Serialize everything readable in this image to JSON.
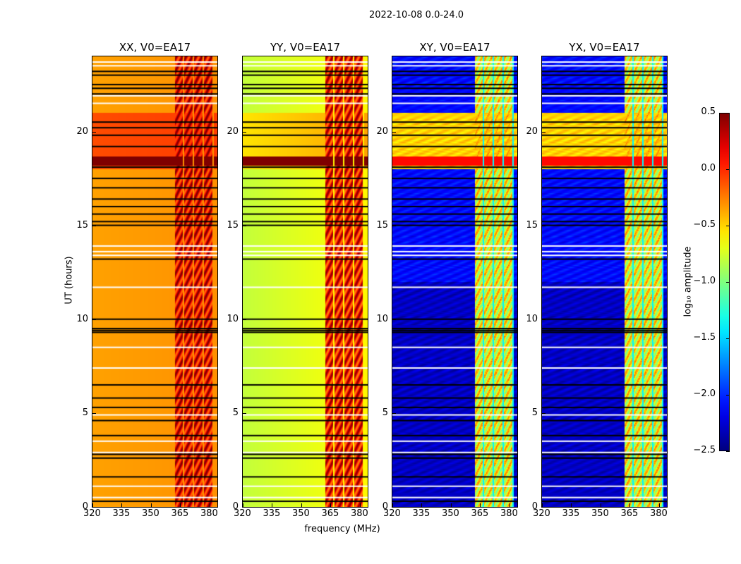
{
  "chart_data": {
    "type": "heatmap",
    "title": "2022-10-08 0.0-24.0",
    "xlabel": "frequency (MHz)",
    "ylabel": "UT (hours)",
    "xlim": [
      320,
      384
    ],
    "ylim": [
      0,
      24
    ],
    "xticks": [
      "320",
      "335",
      "350",
      "365",
      "380"
    ],
    "xtick_values": [
      320,
      335,
      350,
      365,
      380
    ],
    "yticks": [
      "0",
      "5",
      "10",
      "15",
      "20"
    ],
    "ytick_values": [
      0,
      5,
      10,
      15,
      20
    ],
    "colormap": "jet",
    "panels": [
      {
        "title": "XX, V0=EA17",
        "base": -0.3,
        "rfi": 0.15
      },
      {
        "title": "YY, V0=EA17",
        "base": -0.6,
        "rfi": 0.1
      },
      {
        "title": "XY, V0=EA17",
        "base": -2.3,
        "rfi": -0.8
      },
      {
        "title": "YX, V0=EA17",
        "base": -2.3,
        "rfi": -0.8
      }
    ],
    "rfi_band_mhz": [
      362,
      382
    ],
    "flagged_black_ut": [
      0.3,
      1.6,
      2.6,
      2.8,
      3.8,
      4.6,
      5.3,
      5.8,
      6.5,
      9.3,
      9.4,
      9.5,
      10.0,
      13.2,
      15.0,
      15.2,
      15.6,
      16.0,
      16.4,
      17.0,
      17.5,
      18.1,
      19.2,
      19.8,
      20.2,
      20.5,
      22.0,
      22.3,
      22.5,
      23.0,
      23.2
    ],
    "flagged_white_ut": [
      0.5,
      1.1,
      2.9,
      3.5,
      4.9,
      7.4,
      8.5,
      11.7,
      13.4,
      13.6,
      13.9,
      21.5,
      21.9,
      23.5,
      23.7
    ],
    "colorbar": {
      "label": "log₁₀ amplitude",
      "range": [
        -2.5,
        0.5
      ],
      "ticks": [
        "0.5",
        "0.0",
        "−0.5",
        "−1.0",
        "−1.5",
        "−2.0",
        "−2.5"
      ],
      "tick_values": [
        0.5,
        0.0,
        -0.5,
        -1.0,
        -1.5,
        -2.0,
        -2.5
      ]
    }
  }
}
